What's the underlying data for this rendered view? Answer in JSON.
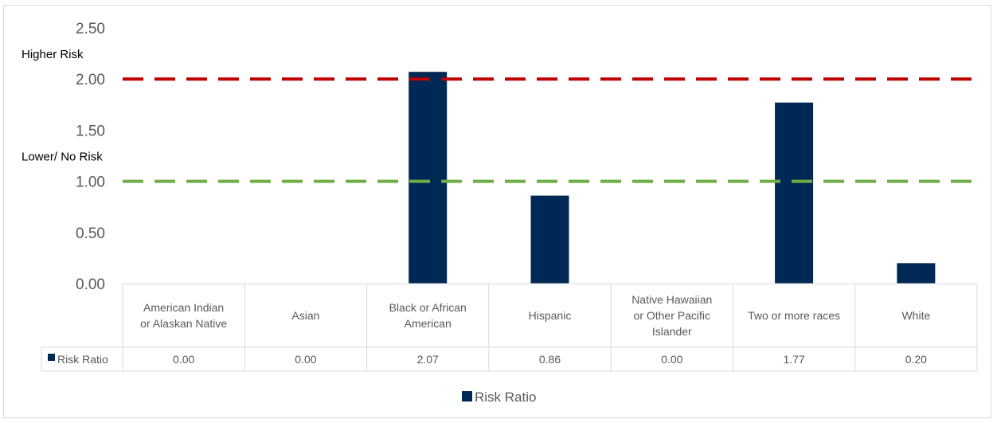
{
  "chart_data": {
    "type": "bar",
    "categories": [
      [
        "American Indian",
        "or Alaskan Native"
      ],
      [
        "Asian"
      ],
      [
        "Black or African",
        "American"
      ],
      [
        "Hispanic"
      ],
      [
        "Native Hawaiian",
        "or Other Pacific",
        "Islander"
      ],
      [
        "Two or more races"
      ],
      [
        "White"
      ]
    ],
    "series": [
      {
        "name": "Risk Ratio",
        "values": [
          0.0,
          0.0,
          2.07,
          0.86,
          0.0,
          1.77,
          0.2
        ],
        "value_labels": [
          "0.00",
          "0.00",
          "2.07",
          "0.86",
          "0.00",
          "1.77",
          "0.20"
        ],
        "color": "#002855"
      }
    ],
    "ylim": [
      0,
      2.5
    ],
    "yticks": [
      "0.00",
      "0.50",
      "1.00",
      "1.50",
      "2.00",
      "2.50"
    ],
    "ytick_values": [
      0,
      0.5,
      1.0,
      1.5,
      2.0,
      2.5
    ],
    "reference_lines": [
      {
        "label": "Higher Risk",
        "value": 2.0,
        "color": "#c00000",
        "style": "dashed"
      },
      {
        "label": "Lower/ No Risk",
        "value": 1.0,
        "color": "#70ad47",
        "style": "dashed"
      }
    ],
    "data_table": true,
    "legend": {
      "position": "bottom",
      "entries": [
        "Risk Ratio"
      ]
    },
    "grid": false
  }
}
